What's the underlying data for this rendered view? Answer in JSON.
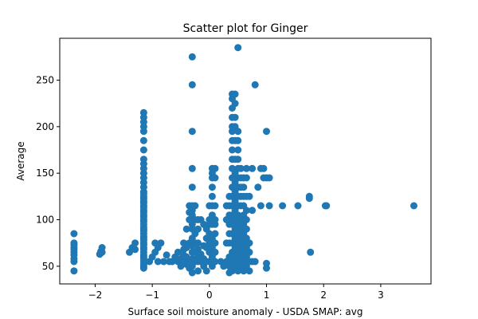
{
  "chart_data": {
    "type": "scatter",
    "title": "Scatter plot for Ginger",
    "xlabel": "Surface soil moisture anomaly  - USDA SMAP: avg",
    "ylabel": "Average",
    "xlim": [
      -2.62,
      3.88
    ],
    "ylim": [
      31,
      295
    ],
    "xticks": [
      -2,
      -1,
      0,
      1,
      2,
      3
    ],
    "yticks": [
      50,
      100,
      150,
      200,
      250
    ],
    "grid": false,
    "legend": "none",
    "marker_color": "#1f77b4",
    "points": [
      [
        -2.37,
        45
      ],
      [
        -2.37,
        55
      ],
      [
        -2.37,
        58
      ],
      [
        -2.37,
        62
      ],
      [
        -2.37,
        65
      ],
      [
        -2.37,
        68
      ],
      [
        -2.37,
        70
      ],
      [
        -2.37,
        73
      ],
      [
        -2.37,
        75
      ],
      [
        -2.37,
        85
      ],
      [
        -1.92,
        63
      ],
      [
        -1.9,
        66
      ],
      [
        -1.88,
        65
      ],
      [
        -1.88,
        70
      ],
      [
        -1.4,
        65
      ],
      [
        -1.35,
        70
      ],
      [
        -1.3,
        75
      ],
      [
        -1.3,
        68
      ],
      [
        -1.15,
        48
      ],
      [
        -1.15,
        50
      ],
      [
        -1.15,
        52
      ],
      [
        -1.15,
        55
      ],
      [
        -1.15,
        58
      ],
      [
        -1.15,
        60
      ],
      [
        -1.15,
        62
      ],
      [
        -1.15,
        65
      ],
      [
        -1.15,
        68
      ],
      [
        -1.15,
        70
      ],
      [
        -1.15,
        73
      ],
      [
        -1.15,
        75
      ],
      [
        -1.15,
        78
      ],
      [
        -1.15,
        80
      ],
      [
        -1.15,
        82
      ],
      [
        -1.15,
        85
      ],
      [
        -1.15,
        88
      ],
      [
        -1.15,
        90
      ],
      [
        -1.15,
        92
      ],
      [
        -1.15,
        95
      ],
      [
        -1.15,
        98
      ],
      [
        -1.15,
        100
      ],
      [
        -1.15,
        103
      ],
      [
        -1.15,
        105
      ],
      [
        -1.15,
        108
      ],
      [
        -1.15,
        110
      ],
      [
        -1.15,
        113
      ],
      [
        -1.15,
        115
      ],
      [
        -1.15,
        118
      ],
      [
        -1.15,
        120
      ],
      [
        -1.15,
        123
      ],
      [
        -1.15,
        125
      ],
      [
        -1.15,
        128
      ],
      [
        -1.15,
        130
      ],
      [
        -1.15,
        135
      ],
      [
        -1.15,
        140
      ],
      [
        -1.15,
        145
      ],
      [
        -1.15,
        150
      ],
      [
        -1.15,
        155
      ],
      [
        -1.15,
        160
      ],
      [
        -1.15,
        165
      ],
      [
        -1.15,
        175
      ],
      [
        -1.15,
        185
      ],
      [
        -1.15,
        195
      ],
      [
        -1.15,
        200
      ],
      [
        -1.15,
        205
      ],
      [
        -1.15,
        210
      ],
      [
        -1.15,
        215
      ],
      [
        -1.05,
        55
      ],
      [
        -1.0,
        60
      ],
      [
        -0.95,
        65
      ],
      [
        -0.9,
        70
      ],
      [
        -0.85,
        75
      ],
      [
        -0.95,
        75
      ],
      [
        -0.9,
        55
      ],
      [
        -0.8,
        55
      ],
      [
        -0.75,
        62
      ],
      [
        -0.7,
        55
      ],
      [
        -0.65,
        55
      ],
      [
        -0.6,
        60
      ],
      [
        -0.55,
        55
      ],
      [
        -0.55,
        65
      ],
      [
        -0.5,
        50
      ],
      [
        -0.5,
        58
      ],
      [
        -0.45,
        55
      ],
      [
        -0.45,
        62
      ],
      [
        -0.45,
        68
      ],
      [
        -0.45,
        75
      ],
      [
        -0.4,
        52
      ],
      [
        -0.4,
        60
      ],
      [
        -0.4,
        70
      ],
      [
        -0.35,
        55
      ],
      [
        -0.35,
        48
      ],
      [
        -0.35,
        75
      ],
      [
        -0.4,
        90
      ],
      [
        -0.35,
        100
      ],
      [
        -0.35,
        108
      ],
      [
        -0.35,
        115
      ],
      [
        -0.3,
        43
      ],
      [
        -0.3,
        50
      ],
      [
        -0.3,
        58
      ],
      [
        -0.3,
        65
      ],
      [
        -0.3,
        72
      ],
      [
        -0.3,
        80
      ],
      [
        -0.3,
        90
      ],
      [
        -0.3,
        95
      ],
      [
        -0.3,
        105
      ],
      [
        -0.3,
        110
      ],
      [
        -0.3,
        115
      ],
      [
        -0.3,
        135
      ],
      [
        -0.3,
        155
      ],
      [
        -0.3,
        195
      ],
      [
        -0.3,
        245
      ],
      [
        -0.3,
        275
      ],
      [
        -0.25,
        55
      ],
      [
        -0.25,
        65
      ],
      [
        -0.25,
        75
      ],
      [
        -0.25,
        85
      ],
      [
        -0.25,
        100
      ],
      [
        -0.25,
        115
      ],
      [
        -0.2,
        45
      ],
      [
        -0.2,
        55
      ],
      [
        -0.2,
        60
      ],
      [
        -0.2,
        68
      ],
      [
        -0.2,
        75
      ],
      [
        -0.2,
        90
      ],
      [
        -0.2,
        100
      ],
      [
        -0.15,
        55
      ],
      [
        -0.15,
        63
      ],
      [
        -0.15,
        100
      ],
      [
        -0.1,
        50
      ],
      [
        -0.1,
        58
      ],
      [
        -0.1,
        72
      ],
      [
        -0.1,
        95
      ],
      [
        -0.05,
        45
      ],
      [
        -0.05,
        55
      ],
      [
        -0.05,
        70
      ],
      [
        -0.05,
        80
      ],
      [
        -0.05,
        90
      ],
      [
        0.0,
        55
      ],
      [
        0.0,
        65
      ],
      [
        0.0,
        75
      ],
      [
        0.0,
        85
      ],
      [
        0.0,
        95
      ],
      [
        0.0,
        100
      ],
      [
        0.0,
        115
      ],
      [
        0.05,
        50
      ],
      [
        0.05,
        60
      ],
      [
        0.05,
        70
      ],
      [
        0.05,
        80
      ],
      [
        0.05,
        95
      ],
      [
        0.05,
        105
      ],
      [
        0.05,
        115
      ],
      [
        0.05,
        125
      ],
      [
        0.05,
        135
      ],
      [
        0.05,
        145
      ],
      [
        0.05,
        150
      ],
      [
        0.05,
        155
      ],
      [
        0.1,
        55
      ],
      [
        0.1,
        65
      ],
      [
        0.1,
        75
      ],
      [
        0.1,
        85
      ],
      [
        0.1,
        95
      ],
      [
        0.1,
        100
      ],
      [
        0.1,
        115
      ],
      [
        0.1,
        145
      ],
      [
        0.1,
        155
      ],
      [
        0.2,
        55
      ],
      [
        0.25,
        50
      ],
      [
        0.3,
        55
      ],
      [
        0.3,
        75
      ],
      [
        0.3,
        100
      ],
      [
        0.3,
        115
      ],
      [
        0.35,
        43
      ],
      [
        0.35,
        50
      ],
      [
        0.35,
        60
      ],
      [
        0.35,
        75
      ],
      [
        0.35,
        85
      ],
      [
        0.35,
        95
      ],
      [
        0.35,
        100
      ],
      [
        0.35,
        105
      ],
      [
        0.35,
        115
      ],
      [
        0.35,
        125
      ],
      [
        0.4,
        45
      ],
      [
        0.4,
        55
      ],
      [
        0.4,
        65
      ],
      [
        0.4,
        75
      ],
      [
        0.4,
        85
      ],
      [
        0.4,
        95
      ],
      [
        0.4,
        105
      ],
      [
        0.4,
        115
      ],
      [
        0.4,
        125
      ],
      [
        0.4,
        135
      ],
      [
        0.4,
        145
      ],
      [
        0.4,
        155
      ],
      [
        0.4,
        165
      ],
      [
        0.4,
        175
      ],
      [
        0.4,
        185
      ],
      [
        0.4,
        195
      ],
      [
        0.4,
        200
      ],
      [
        0.4,
        210
      ],
      [
        0.4,
        220
      ],
      [
        0.4,
        230
      ],
      [
        0.4,
        235
      ],
      [
        0.45,
        50
      ],
      [
        0.45,
        60
      ],
      [
        0.45,
        70
      ],
      [
        0.45,
        80
      ],
      [
        0.45,
        90
      ],
      [
        0.45,
        100
      ],
      [
        0.45,
        110
      ],
      [
        0.45,
        120
      ],
      [
        0.45,
        130
      ],
      [
        0.45,
        140
      ],
      [
        0.45,
        150
      ],
      [
        0.45,
        165
      ],
      [
        0.45,
        185
      ],
      [
        0.45,
        200
      ],
      [
        0.45,
        210
      ],
      [
        0.45,
        225
      ],
      [
        0.45,
        235
      ],
      [
        0.5,
        45
      ],
      [
        0.5,
        55
      ],
      [
        0.5,
        65
      ],
      [
        0.5,
        75
      ],
      [
        0.5,
        85
      ],
      [
        0.5,
        95
      ],
      [
        0.5,
        105
      ],
      [
        0.5,
        115
      ],
      [
        0.5,
        125
      ],
      [
        0.5,
        135
      ],
      [
        0.5,
        145
      ],
      [
        0.5,
        155
      ],
      [
        0.5,
        165
      ],
      [
        0.5,
        175
      ],
      [
        0.5,
        185
      ],
      [
        0.5,
        195
      ],
      [
        0.5,
        285
      ],
      [
        0.55,
        50
      ],
      [
        0.55,
        60
      ],
      [
        0.55,
        70
      ],
      [
        0.55,
        80
      ],
      [
        0.55,
        90
      ],
      [
        0.55,
        100
      ],
      [
        0.55,
        115
      ],
      [
        0.55,
        125
      ],
      [
        0.55,
        135
      ],
      [
        0.55,
        145
      ],
      [
        0.55,
        155
      ],
      [
        0.6,
        45
      ],
      [
        0.6,
        55
      ],
      [
        0.6,
        65
      ],
      [
        0.6,
        75
      ],
      [
        0.6,
        85
      ],
      [
        0.6,
        95
      ],
      [
        0.6,
        105
      ],
      [
        0.6,
        115
      ],
      [
        0.6,
        125
      ],
      [
        0.6,
        135
      ],
      [
        0.6,
        145
      ],
      [
        0.65,
        50
      ],
      [
        0.65,
        60
      ],
      [
        0.65,
        70
      ],
      [
        0.65,
        80
      ],
      [
        0.65,
        90
      ],
      [
        0.65,
        100
      ],
      [
        0.65,
        110
      ],
      [
        0.65,
        125
      ],
      [
        0.65,
        145
      ],
      [
        0.65,
        155
      ],
      [
        0.7,
        45
      ],
      [
        0.7,
        55
      ],
      [
        0.7,
        65
      ],
      [
        0.7,
        75
      ],
      [
        0.7,
        125
      ],
      [
        0.75,
        55
      ],
      [
        0.75,
        110
      ],
      [
        0.75,
        155
      ],
      [
        0.8,
        55
      ],
      [
        0.8,
        245
      ],
      [
        0.85,
        135
      ],
      [
        0.9,
        115
      ],
      [
        0.9,
        155
      ],
      [
        0.95,
        145
      ],
      [
        0.95,
        155
      ],
      [
        1.0,
        145
      ],
      [
        1.0,
        48
      ],
      [
        1.0,
        53
      ],
      [
        1.0,
        195
      ],
      [
        1.05,
        115
      ],
      [
        1.05,
        145
      ],
      [
        1.28,
        115
      ],
      [
        1.55,
        115
      ],
      [
        1.75,
        125
      ],
      [
        1.75,
        123
      ],
      [
        1.77,
        65
      ],
      [
        2.03,
        115
      ],
      [
        2.05,
        115
      ],
      [
        3.58,
        115
      ]
    ]
  }
}
